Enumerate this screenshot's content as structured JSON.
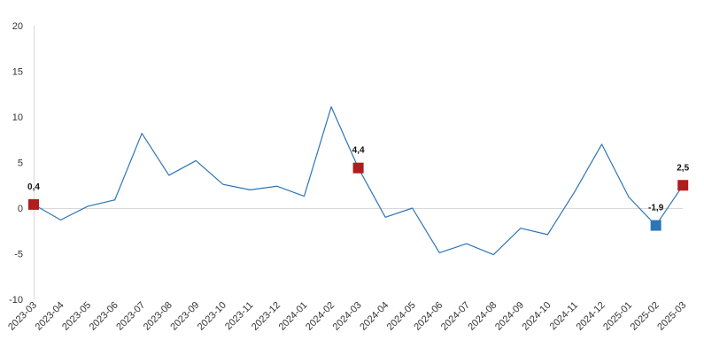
{
  "chart_data": {
    "type": "line",
    "title": "",
    "xlabel": "",
    "ylabel": "",
    "ylim": [
      -10,
      20
    ],
    "yticks": [
      -10,
      -5,
      0,
      5,
      10,
      15,
      20
    ],
    "grid": false,
    "categories": [
      "2023-03",
      "2023-04",
      "2023-05",
      "2023-06",
      "2023-07",
      "2023-08",
      "2023-09",
      "2023-10",
      "2023-11",
      "2023-12",
      "2024-01",
      "2024-02",
      "2024-03",
      "2024-04",
      "2024-05",
      "2024-06",
      "2024-07",
      "2024-08",
      "2024-09",
      "2024-10",
      "2024-11",
      "2024-12",
      "2025-01",
      "2025-02",
      "2025-03"
    ],
    "series": [
      {
        "values": [
          0.4,
          -1.3,
          0.2,
          0.9,
          8.2,
          3.6,
          5.2,
          2.6,
          2.0,
          2.4,
          1.3,
          11.1,
          4.4,
          -1.0,
          0.0,
          -4.9,
          -3.9,
          -5.1,
          -2.2,
          -2.9,
          1.8,
          7.0,
          1.2,
          -1.9,
          2.5
        ],
        "color": "#2e75b6"
      }
    ],
    "markers": [
      {
        "index": 0,
        "label": "0,4",
        "color": "#b11c1c"
      },
      {
        "index": 12,
        "label": "4,4",
        "color": "#b11c1c"
      },
      {
        "index": 23,
        "label": "-1,9",
        "color": "#2e75b6"
      },
      {
        "index": 24,
        "label": "2,5",
        "color": "#b11c1c"
      }
    ],
    "axis_color": "#d9d9d9"
  }
}
